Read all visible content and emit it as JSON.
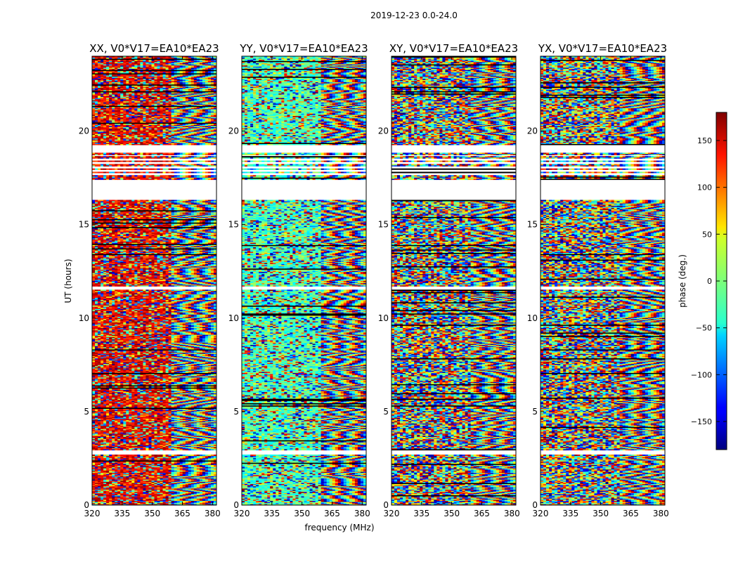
{
  "figure_title": "2019-12-23 0.0-24.0",
  "colorbar": {
    "label": "phase (deg.)",
    "range": [
      -180,
      180
    ],
    "ticks": [
      150,
      100,
      50,
      0,
      -50,
      -100,
      -150
    ],
    "tick_labels": [
      "150",
      "100",
      "50",
      "0",
      "−50",
      "−100",
      "−150"
    ],
    "colormap": "jet"
  },
  "chart_data": [
    {
      "type": "heatmap",
      "title": "XX, V0*V17=EA10*EA23",
      "xlabel": "",
      "ylabel": "UT (hours)",
      "xlim": [
        320,
        382
      ],
      "ylim": [
        0,
        24
      ],
      "xticks": [
        320,
        335,
        350,
        365,
        380
      ],
      "yticks": [
        0,
        5,
        10,
        15,
        20
      ],
      "low_freq_bias_deg": 140,
      "bias_edge_mhz": 359,
      "gaps_hours": [
        [
          17.1,
          17.4
        ],
        [
          18.8,
          19.2
        ],
        [
          11.5,
          11.7
        ],
        [
          2.7,
          2.9
        ]
      ]
    },
    {
      "type": "heatmap",
      "title": "YY, V0*V17=EA10*EA23",
      "xlabel": "frequency (MHz)",
      "ylabel": "",
      "xlim": [
        320,
        382
      ],
      "ylim": [
        0,
        24
      ],
      "xticks": [
        320,
        335,
        350,
        365,
        380
      ],
      "yticks": [
        0,
        5,
        10,
        15,
        20
      ],
      "low_freq_bias_deg": -20,
      "bias_edge_mhz": 359,
      "gaps_hours": [
        [
          17.1,
          17.4
        ],
        [
          18.8,
          19.2
        ],
        [
          11.5,
          11.7
        ],
        [
          2.7,
          2.9
        ]
      ]
    },
    {
      "type": "heatmap",
      "title": "XY, V0*V17=EA10*EA23",
      "xlabel": "",
      "ylabel": "",
      "xlim": [
        320,
        382
      ],
      "ylim": [
        0,
        24
      ],
      "xticks": [
        320,
        335,
        350,
        365,
        380
      ],
      "yticks": [
        0,
        5,
        10,
        15,
        20
      ],
      "low_freq_bias_deg": null,
      "bias_edge_mhz": 359,
      "gaps_hours": [
        [
          17.1,
          17.4
        ],
        [
          18.8,
          19.2
        ],
        [
          11.5,
          11.7
        ],
        [
          2.7,
          2.9
        ]
      ]
    },
    {
      "type": "heatmap",
      "title": "YX, V0*V17=EA10*EA23",
      "xlabel": "",
      "ylabel": "",
      "xlim": [
        320,
        382
      ],
      "ylim": [
        0,
        24
      ],
      "xticks": [
        320,
        335,
        350,
        365,
        380
      ],
      "yticks": [
        0,
        5,
        10,
        15,
        20
      ],
      "low_freq_bias_deg": null,
      "bias_edge_mhz": 359,
      "gaps_hours": [
        [
          17.1,
          17.4
        ],
        [
          18.8,
          19.2
        ],
        [
          11.5,
          11.7
        ],
        [
          2.7,
          2.9
        ]
      ]
    }
  ]
}
